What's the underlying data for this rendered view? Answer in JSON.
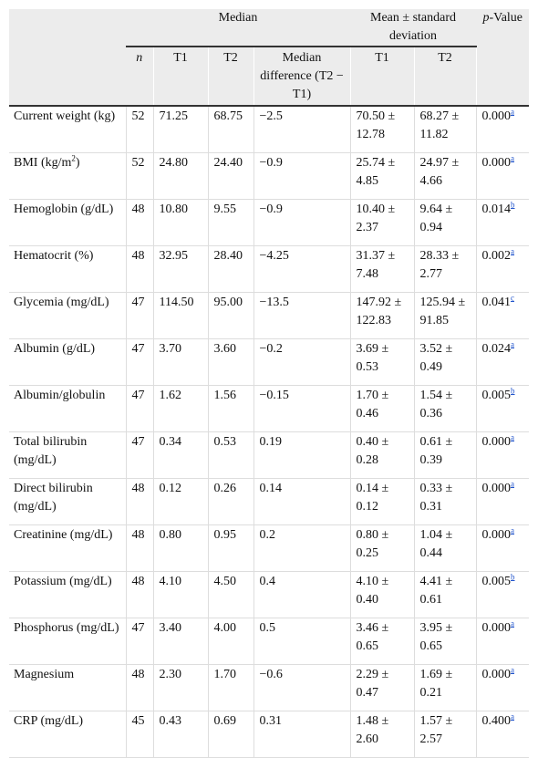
{
  "header": {
    "group_median": "Median",
    "group_mean": "Mean ± standard deviation",
    "p_value": {
      "italic": "p",
      "rest": "-Value"
    },
    "columns": [
      "n",
      "T1",
      "T2",
      "Median difference (T2 − T1)",
      "T1",
      "T2"
    ]
  },
  "rows": [
    {
      "label": "Current weight (kg)",
      "n": "52",
      "med_t1": "71.25",
      "med_t2": "68.75",
      "diff": "−2.5",
      "mean_t1": "70.50 ± 12.78",
      "mean_t2": "68.27 ± 11.82",
      "p": "0.000",
      "note": "a"
    },
    {
      "label": "BMI (kg/m",
      "label_sup": "2",
      "label_end": ")",
      "n": "52",
      "med_t1": "24.80",
      "med_t2": "24.40",
      "diff": "−0.9",
      "mean_t1": "25.74 ± 4.85",
      "mean_t2": "24.97 ± 4.66",
      "p": "0.000",
      "note": "a"
    },
    {
      "label": "Hemoglobin (g/dL)",
      "n": "48",
      "med_t1": "10.80",
      "med_t2": "9.55",
      "diff": "−0.9",
      "mean_t1": "10.40 ± 2.37",
      "mean_t2": "9.64 ± 0.94",
      "p": "0.014",
      "note": "b"
    },
    {
      "label": "Hematocrit (%)",
      "n": "48",
      "med_t1": "32.95",
      "med_t2": "28.40",
      "diff": "−4.25",
      "mean_t1": "31.37 ± 7.48",
      "mean_t2": "28.33 ± 2.77",
      "p": "0.002",
      "note": "a"
    },
    {
      "label": "Glycemia (mg/dL)",
      "n": "47",
      "med_t1": "114.50",
      "med_t2": "95.00",
      "diff": "−13.5",
      "mean_t1": "147.92 ± 122.83",
      "mean_t2": "125.94 ± 91.85",
      "p": "0.041",
      "note": "c"
    },
    {
      "label": "Albumin (g/dL)",
      "n": "47",
      "med_t1": "3.70",
      "med_t2": "3.60",
      "diff": "−0.2",
      "mean_t1": "3.69 ± 0.53",
      "mean_t2": "3.52 ± 0.49",
      "p": "0.024",
      "note": "a"
    },
    {
      "label": "Albumin/globulin",
      "n": "47",
      "med_t1": "1.62",
      "med_t2": "1.56",
      "diff": "−0.15",
      "mean_t1": "1.70 ± 0.46",
      "mean_t2": "1.54 ± 0.36",
      "p": "0.005",
      "note": "b"
    },
    {
      "label": "Total bilirubin (mg/dL)",
      "n": "47",
      "med_t1": "0.34",
      "med_t2": "0.53",
      "diff": "0.19",
      "mean_t1": "0.40 ± 0.28",
      "mean_t2": "0.61 ± 0.39",
      "p": "0.000",
      "note": "a"
    },
    {
      "label": "Direct bilirubin (mg/dL)",
      "n": "48",
      "med_t1": "0.12",
      "med_t2": "0.26",
      "diff": "0.14",
      "mean_t1": "0.14 ± 0.12",
      "mean_t2": "0.33 ± 0.31",
      "p": "0.000",
      "note": "a"
    },
    {
      "label": "Creatinine (mg/dL)",
      "n": "48",
      "med_t1": "0.80",
      "med_t2": "0.95",
      "diff": "0.2",
      "mean_t1": "0.80 ± 0.25",
      "mean_t2": "1.04 ± 0.44",
      "p": "0.000",
      "note": "a"
    },
    {
      "label": "Potassium (mg/dL)",
      "n": "48",
      "med_t1": "4.10",
      "med_t2": "4.50",
      "diff": "0.4",
      "mean_t1": "4.10 ± 0.40",
      "mean_t2": "4.41 ± 0.61",
      "p": "0.005",
      "note": "b"
    },
    {
      "label": "Phosphorus (mg/dL)",
      "n": "47",
      "med_t1": "3.40",
      "med_t2": "4.00",
      "diff": "0.5",
      "mean_t1": "3.46 ± 0.65",
      "mean_t2": "3.95 ± 0.65",
      "p": "0.000",
      "note": "a"
    },
    {
      "label": "Magnesium",
      "n": "48",
      "med_t1": "2.30",
      "med_t2": "1.70",
      "diff": "−0.6",
      "mean_t1": "2.29 ± 0.47",
      "mean_t2": "1.69 ± 0.21",
      "p": "0.000",
      "note": "a"
    },
    {
      "label": "CRP (mg/dL)",
      "n": "45",
      "med_t1": "0.43",
      "med_t2": "0.69",
      "diff": "0.31",
      "mean_t1": "1.48 ± 2.60",
      "mean_t2": "1.57 ± 2.57",
      "p": "0.400",
      "note": "a"
    }
  ]
}
